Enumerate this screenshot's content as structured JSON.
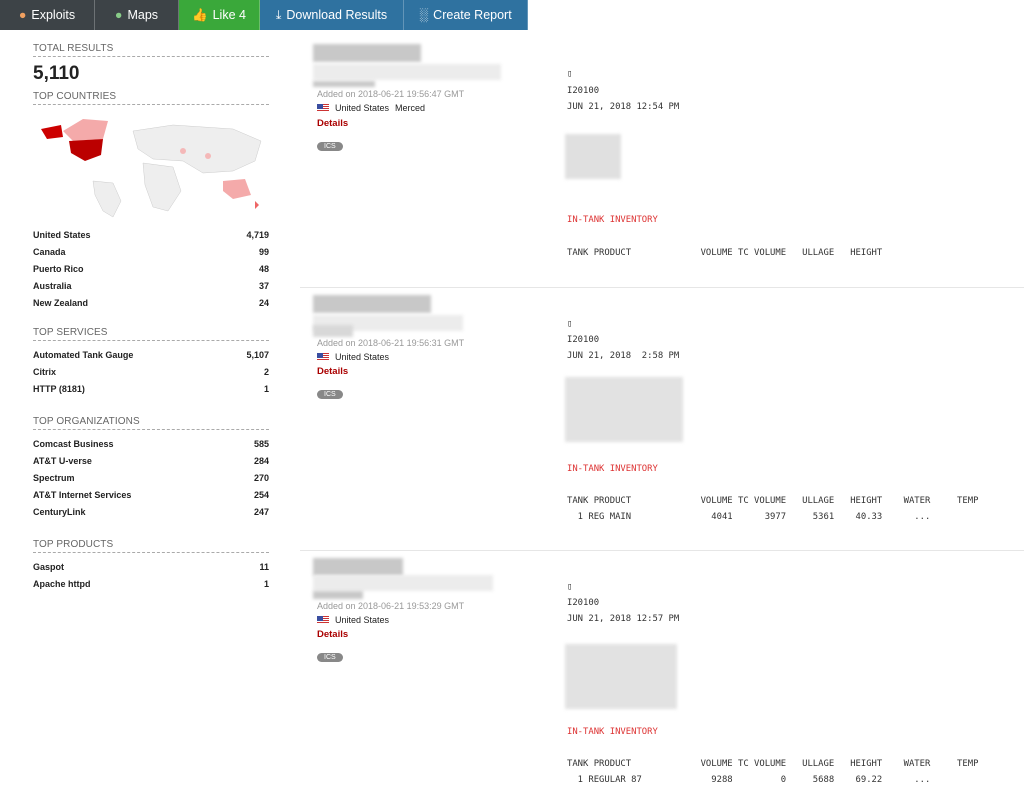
{
  "nav": {
    "exploits": "Exploits",
    "maps": "Maps",
    "like": "Like 4",
    "download": "Download Results",
    "report": "Create Report"
  },
  "colors": {
    "nav_dark": "#3d4347",
    "like_green": "#3aa83a",
    "nav_blue": "#2f72a0",
    "accent_red": "#d33333"
  },
  "sidebar": {
    "total_label": "TOTAL RESULTS",
    "total": "5,110",
    "countries_label": "TOP COUNTRIES",
    "countries": [
      {
        "name": "United States",
        "count": "4,719"
      },
      {
        "name": "Canada",
        "count": "99"
      },
      {
        "name": "Puerto Rico",
        "count": "48"
      },
      {
        "name": "Australia",
        "count": "37"
      },
      {
        "name": "New Zealand",
        "count": "24"
      }
    ],
    "services_label": "TOP SERVICES",
    "services": [
      {
        "name": "Automated Tank Gauge",
        "count": "5,107"
      },
      {
        "name": "Citrix",
        "count": "2"
      },
      {
        "name": "HTTP (8181)",
        "count": "1"
      }
    ],
    "orgs_label": "TOP ORGANIZATIONS",
    "orgs": [
      {
        "name": "Comcast Business",
        "count": "585"
      },
      {
        "name": "AT&T U-verse",
        "count": "284"
      },
      {
        "name": "Spectrum",
        "count": "270"
      },
      {
        "name": "AT&T Internet Services",
        "count": "254"
      },
      {
        "name": "CenturyLink",
        "count": "247"
      }
    ],
    "products_label": "TOP PRODUCTS",
    "products": [
      {
        "name": "Gaspot",
        "count": "11"
      },
      {
        "name": "Apache httpd",
        "count": "1"
      }
    ]
  },
  "results": [
    {
      "added": "Added on 2018-06-21 19:56:47 GMT",
      "country": "United States",
      "city": "Merced",
      "details": "Details",
      "tag": "ICS",
      "banner": {
        "glyph": "▯",
        "id": "I20100",
        "date": "JUN 21, 2018 12:54 PM",
        "section": "IN-TANK INVENTORY",
        "header": "TANK PRODUCT             VOLUME TC VOLUME   ULLAGE   HEIGHT",
        "row": ""
      }
    },
    {
      "added": "Added on 2018-06-21 19:56:31 GMT",
      "country": "United States",
      "city": "",
      "details": "Details",
      "tag": "ICS",
      "banner": {
        "glyph": "▯",
        "id": "I20100",
        "date": "JUN 21, 2018  2:58 PM",
        "section": "IN-TANK INVENTORY",
        "header": "TANK PRODUCT             VOLUME TC VOLUME   ULLAGE   HEIGHT    WATER     TEMP",
        "row": "  1 REG MAIN               4041      3977     5361    40.33      ..."
      }
    },
    {
      "added": "Added on 2018-06-21 19:53:29 GMT",
      "country": "United States",
      "city": "",
      "details": "Details",
      "tag": "ICS",
      "banner": {
        "glyph": "▯",
        "id": "I20100",
        "date": "JUN 21, 2018 12:57 PM",
        "section": "IN-TANK INVENTORY",
        "header": "TANK PRODUCT             VOLUME TC VOLUME   ULLAGE   HEIGHT    WATER     TEMP",
        "row": "  1 REGULAR 87             9288         0     5688    69.22      ..."
      }
    }
  ]
}
